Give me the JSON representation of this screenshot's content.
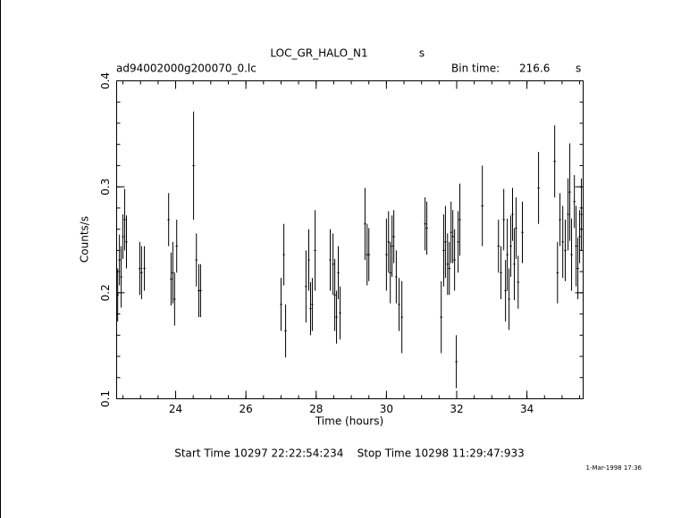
{
  "chart_data": {
    "type": "errorbar",
    "title": "LOC_GR_HALO_N1",
    "title_unit": "s",
    "file_name": "ad94002000g200070_0.lc",
    "bin_time_label": "Bin time:",
    "bin_time": 216.6,
    "bin_time_unit": "s",
    "x_label": "Time (hours)",
    "y_label": "Counts/s",
    "footer": "Start Time 10297 22:22:54:234    Stop Time 10298 11:29:47:933",
    "timestamp": "1-Mar-1998 17:36",
    "color": "#000000",
    "xlim": [
      22.32,
      35.6
    ],
    "xticks": [
      24,
      26,
      28,
      30,
      32,
      34
    ],
    "ylim": [
      0.1,
      0.4
    ],
    "yticks": [
      0.1,
      0.2,
      0.3,
      0.4
    ],
    "x": [
      22.35,
      22.4,
      22.45,
      22.5,
      22.55,
      22.6,
      22.98,
      23.03,
      23.11,
      23.8,
      23.87,
      23.92,
      23.97,
      24.03,
      24.51,
      24.59,
      24.66,
      24.71,
      27.0,
      27.08,
      27.13,
      27.71,
      27.79,
      27.84,
      27.89,
      27.97,
      28.4,
      28.48,
      28.53,
      28.58,
      28.63,
      28.68,
      29.39,
      29.45,
      29.5,
      30.0,
      30.06,
      30.11,
      30.16,
      30.21,
      30.28,
      30.36,
      30.44,
      31.1,
      31.15,
      31.56,
      31.63,
      31.68,
      31.74,
      31.79,
      31.84,
      31.89,
      31.94,
      31.99,
      32.04,
      32.09,
      32.73,
      33.19,
      33.26,
      33.34,
      33.39,
      33.44,
      33.49,
      33.54,
      33.59,
      33.64,
      33.69,
      33.75,
      33.87,
      34.33,
      34.79,
      34.87,
      34.94,
      35.02,
      35.09,
      35.17,
      35.22,
      35.27,
      35.35,
      35.4,
      35.45,
      35.5,
      35.55
    ],
    "values": [
      0.198,
      0.231,
      0.215,
      0.253,
      0.269,
      0.248,
      0.223,
      0.219,
      0.223,
      0.269,
      0.213,
      0.219,
      0.194,
      0.244,
      0.32,
      0.231,
      0.202,
      0.202,
      0.189,
      0.236,
      0.164,
      0.206,
      0.231,
      0.185,
      0.189,
      0.24,
      0.231,
      0.227,
      0.198,
      0.177,
      0.219,
      0.181,
      0.265,
      0.236,
      0.236,
      0.236,
      0.248,
      0.219,
      0.244,
      0.253,
      0.215,
      0.189,
      0.177,
      0.265,
      0.261,
      0.177,
      0.24,
      0.248,
      0.227,
      0.223,
      0.257,
      0.253,
      0.231,
      0.135,
      0.248,
      0.269,
      0.282,
      0.244,
      0.219,
      0.269,
      0.202,
      0.236,
      0.194,
      0.244,
      0.274,
      0.227,
      0.261,
      0.21,
      0.257,
      0.299,
      0.324,
      0.219,
      0.269,
      0.248,
      0.24,
      0.274,
      0.295,
      0.236,
      0.286,
      0.244,
      0.223,
      0.253,
      0.274
    ],
    "errors": [
      0.025,
      0.024,
      0.029,
      0.021,
      0.029,
      0.025,
      0.025,
      0.025,
      0.021,
      0.025,
      0.025,
      0.029,
      0.025,
      0.025,
      0.051,
      0.025,
      0.025,
      0.025,
      0.025,
      0.029,
      0.025,
      0.034,
      0.029,
      0.025,
      0.025,
      0.038,
      0.029,
      0.029,
      0.034,
      0.025,
      0.025,
      0.025,
      0.034,
      0.029,
      0.025,
      0.034,
      0.029,
      0.029,
      0.029,
      0.025,
      0.025,
      0.025,
      0.034,
      0.025,
      0.025,
      0.034,
      0.034,
      0.034,
      0.029,
      0.025,
      0.029,
      0.025,
      0.029,
      0.025,
      0.029,
      0.034,
      0.038,
      0.025,
      0.025,
      0.029,
      0.029,
      0.034,
      0.029,
      0.029,
      0.025,
      0.034,
      0.029,
      0.025,
      0.029,
      0.034,
      0.034,
      0.029,
      0.025,
      0.034,
      0.029,
      0.034,
      0.046,
      0.034,
      0.025,
      0.038,
      0.029,
      0.025,
      0.034
    ]
  }
}
